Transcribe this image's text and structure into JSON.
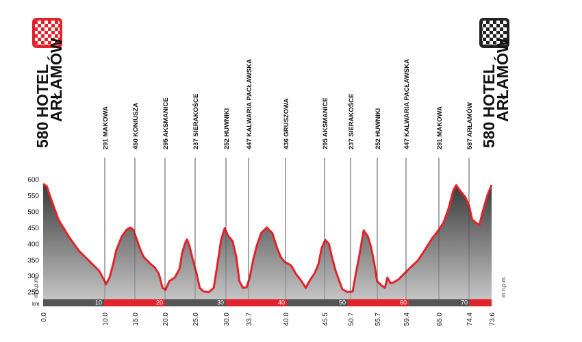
{
  "chart_data": {
    "type": "area",
    "color": "#e3232b",
    "start": {
      "km": "0.0",
      "altitude": "580",
      "name": [
        "HOTEL",
        "ARŁAMÓW"
      ]
    },
    "finish": {
      "km": "73.6",
      "altitude": "580",
      "name": [
        "HOTEL",
        "ARŁAMÓW"
      ]
    },
    "waypoints": [
      {
        "km": "10.0",
        "name": "291 MAKOWA"
      },
      {
        "km": "15.0",
        "name": "450 KONIUSZA"
      },
      {
        "km": "20.0",
        "name": "295 AKSMANICE"
      },
      {
        "km": "25.0",
        "name": "237 SIERAKOŚCE"
      },
      {
        "km": "30.0",
        "name": "252 HUWNIKI"
      },
      {
        "km": "33.7",
        "name": "447 KALWARIA PACŁAWSKA"
      },
      {
        "km": "40.0",
        "name": "436 GRUSZOWA"
      },
      {
        "km": "45.5",
        "name": "295 AKSMANICE"
      },
      {
        "km": "50.7",
        "name": "237 SIERAKOŚCE"
      },
      {
        "km": "55.7",
        "name": "252 HUWNIKI"
      },
      {
        "km": "59.4",
        "name": "447 KALWARIA PACŁAWSKA"
      },
      {
        "km": "65.0",
        "name": "291 MAKOWA"
      },
      {
        "km": "74.4",
        "name": "587 ARŁAMÓW"
      }
    ],
    "x": [
      0.0,
      0.6,
      1.3,
      2.5,
      4.2,
      5.8,
      7.5,
      9.2,
      10.1,
      10.3,
      10.9,
      11.5,
      12.0,
      12.9,
      13.7,
      14.3,
      14.8,
      15.4,
      16.0,
      16.5,
      17.1,
      17.6,
      18.3,
      19.0,
      19.6,
      20.1,
      20.7,
      21.6,
      22.4,
      22.8,
      23.3,
      23.6,
      24.0,
      24.6,
      25.2,
      25.7,
      26.3,
      27.2,
      28.0,
      28.7,
      29.2,
      29.8,
      30.3,
      31.1,
      31.7,
      32.2,
      32.8,
      33.4,
      33.9,
      34.5,
      35.1,
      35.8,
      36.7,
      37.6,
      38.4,
      39.0,
      39.6,
      40.7,
      41.5,
      42.4,
      43.1,
      43.7,
      44.6,
      45.2,
      45.7,
      46.3,
      46.9,
      47.4,
      48.0,
      48.6,
      49.1,
      49.9,
      50.8,
      51.3,
      51.9,
      52.6,
      53.3,
      53.8,
      54.3,
      54.8,
      55.5,
      56.1,
      56.5,
      57.0,
      57.5,
      58.3,
      59.2,
      60.3,
      61.5,
      62.4,
      63.1,
      63.9,
      64.8,
      65.7,
      66.5,
      67.3,
      67.8,
      68.4,
      69.3,
      69.9,
      70.4,
      71.0,
      71.6,
      72.1,
      72.9,
      73.6
    ],
    "values": [
      589,
      581,
      542,
      478,
      425,
      382,
      350,
      318,
      286,
      276,
      297,
      340,
      382,
      425,
      446,
      453,
      446,
      414,
      382,
      361,
      350,
      340,
      329,
      308,
      265,
      259,
      286,
      297,
      325,
      372,
      404,
      416,
      397,
      350,
      308,
      265,
      254,
      252,
      265,
      350,
      414,
      451,
      429,
      410,
      361,
      286,
      265,
      267,
      297,
      355,
      399,
      436,
      453,
      436,
      389,
      361,
      346,
      335,
      308,
      286,
      265,
      286,
      312,
      340,
      389,
      414,
      402,
      361,
      318,
      286,
      261,
      252,
      254,
      308,
      367,
      444,
      425,
      393,
      346,
      286,
      273,
      265,
      297,
      280,
      282,
      291,
      308,
      329,
      350,
      376,
      397,
      421,
      442,
      468,
      510,
      568,
      585,
      568,
      547,
      521,
      478,
      468,
      461,
      500,
      553,
      585
    ],
    "xlim": [
      0,
      73.6
    ],
    "ylim": [
      230,
      600
    ],
    "yticks": [
      250,
      300,
      350,
      400,
      450,
      500,
      550,
      600
    ],
    "xlabel": "km",
    "xticks": [
      10,
      20,
      30,
      40,
      50,
      60,
      70
    ],
    "ylabel": "m n.p.m."
  }
}
